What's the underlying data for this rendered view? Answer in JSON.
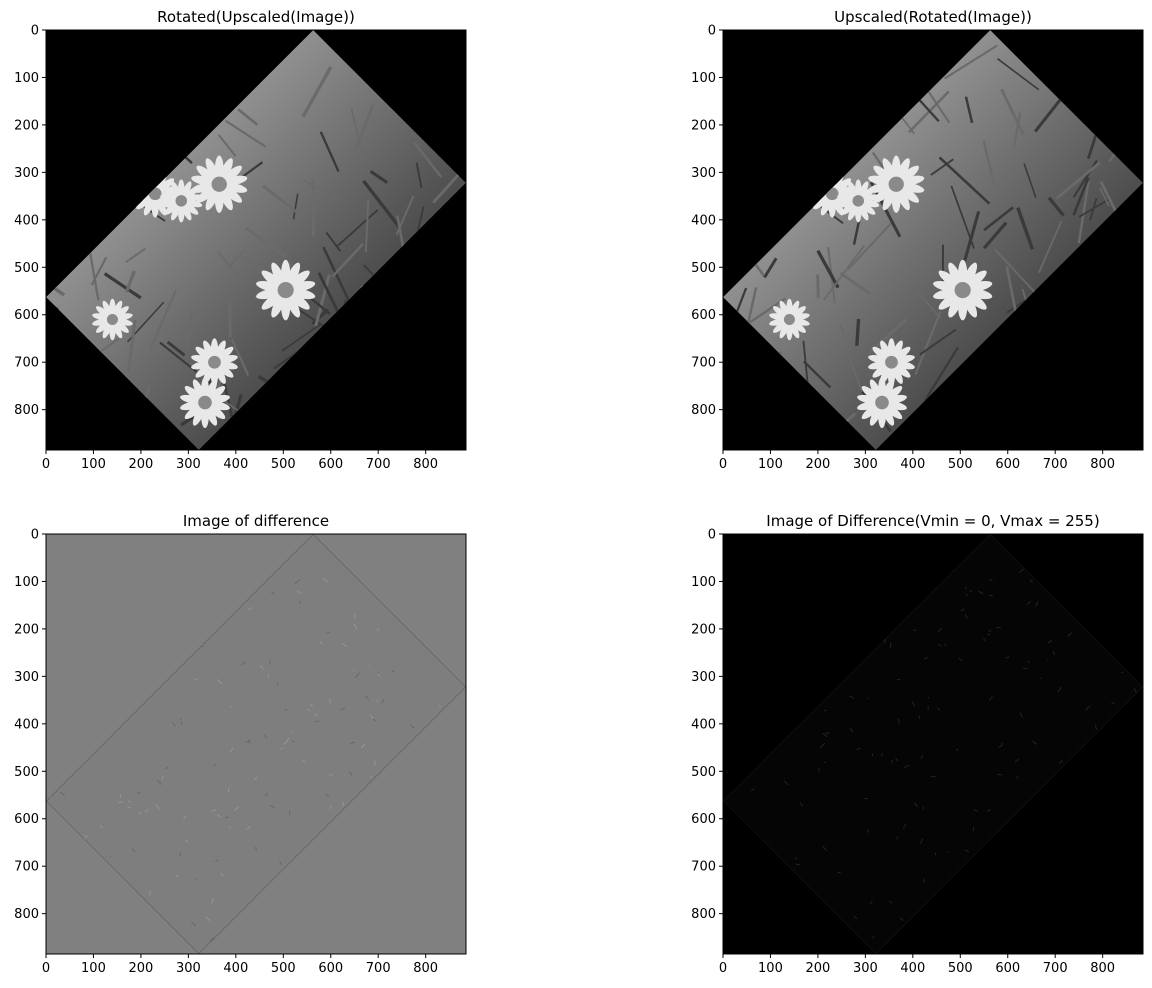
{
  "figure": {
    "panels": [
      {
        "title": "Rotated(Upscaled(Image))",
        "image": "rotated-daisy-photo",
        "style": "photo"
      },
      {
        "title": "Upscaled(Rotated(Image))",
        "image": "rotated-daisy-photo",
        "style": "photo"
      },
      {
        "title": "Image of difference",
        "image": "difference-image-gray",
        "style": "diff-gray"
      },
      {
        "title": "Image of Difference(Vmin = 0, Vmax = 255)",
        "image": "difference-image-black",
        "style": "diff-black"
      }
    ]
  },
  "chart_data": [
    {
      "type": "heatmap",
      "title": "Rotated(Upscaled(Image))",
      "colormap": "gray",
      "xlim": [
        0,
        885
      ],
      "ylim": [
        885,
        0
      ],
      "xticks": [
        0,
        100,
        200,
        300,
        400,
        500,
        600,
        700,
        800
      ],
      "yticks": [
        0,
        100,
        200,
        300,
        400,
        500,
        600,
        700,
        800
      ],
      "rotated_content_corners": [
        [
          563,
          0
        ],
        [
          885,
          322
        ],
        [
          322,
          885
        ],
        [
          0,
          563
        ]
      ]
    },
    {
      "type": "heatmap",
      "title": "Upscaled(Rotated(Image))",
      "colormap": "gray",
      "xlim": [
        0,
        885
      ],
      "ylim": [
        885,
        0
      ],
      "xticks": [
        0,
        100,
        200,
        300,
        400,
        500,
        600,
        700,
        800
      ],
      "yticks": [
        0,
        100,
        200,
        300,
        400,
        500,
        600,
        700,
        800
      ],
      "rotated_content_corners": [
        [
          563,
          0
        ],
        [
          885,
          322
        ],
        [
          322,
          885
        ],
        [
          0,
          563
        ]
      ]
    },
    {
      "type": "heatmap",
      "title": "Image of difference",
      "colormap": "gray",
      "xlim": [
        0,
        885
      ],
      "ylim": [
        885,
        0
      ],
      "xticks": [
        0,
        100,
        200,
        300,
        400,
        500,
        600,
        700,
        800
      ],
      "yticks": [
        0,
        100,
        200,
        300,
        400,
        500,
        600,
        700,
        800
      ],
      "rotated_content_corners": [
        [
          563,
          0
        ],
        [
          885,
          322
        ],
        [
          322,
          885
        ],
        [
          0,
          563
        ]
      ]
    },
    {
      "type": "heatmap",
      "title": "Image of Difference(Vmin = 0, Vmax = 255)",
      "colormap": "gray",
      "vmin": 0,
      "vmax": 255,
      "xlim": [
        0,
        885
      ],
      "ylim": [
        885,
        0
      ],
      "xticks": [
        0,
        100,
        200,
        300,
        400,
        500,
        600,
        700,
        800
      ],
      "yticks": [
        0,
        100,
        200,
        300,
        400,
        500,
        600,
        700,
        800
      ],
      "rotated_content_corners": [
        [
          563,
          0
        ],
        [
          885,
          322
        ],
        [
          322,
          885
        ],
        [
          0,
          563
        ]
      ]
    }
  ]
}
